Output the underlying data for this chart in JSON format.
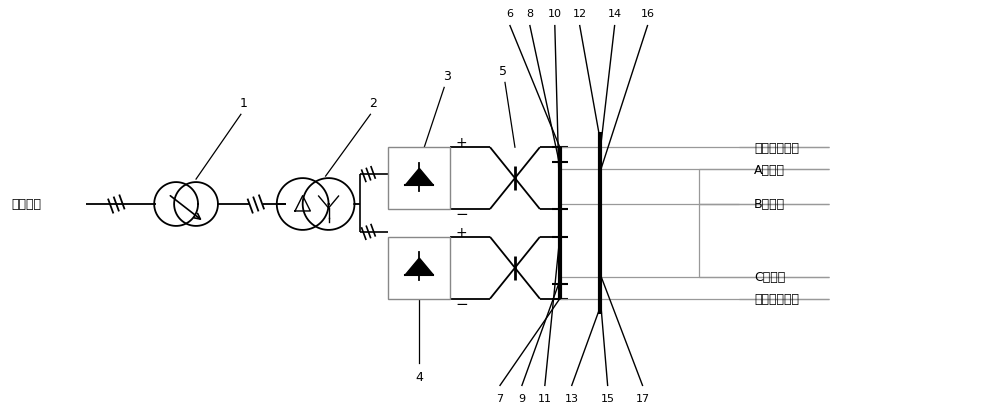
{
  "bg_color": "#ffffff",
  "line_color": "#000000",
  "gray_color": "#999999",
  "purple_color": "#9966aa",
  "fig_width": 10.0,
  "fig_height": 4.1,
  "dpi": 100,
  "labels": {
    "source": "三相电源",
    "label1": "第一绝缘地线",
    "label2": "A相导线",
    "label3": "B相导线",
    "label4": "C相导线",
    "label5": "第二绝缘地线"
  }
}
